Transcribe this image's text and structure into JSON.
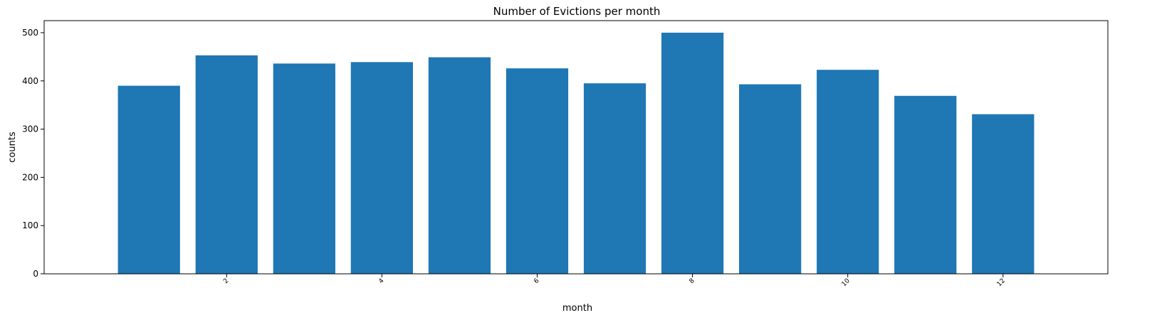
{
  "chart_data": {
    "type": "bar",
    "title": "Number of Evictions per month",
    "xlabel": "month",
    "ylabel": "counts",
    "x": [
      1,
      2,
      3,
      4,
      5,
      6,
      7,
      8,
      9,
      10,
      11,
      12
    ],
    "values": [
      390,
      453,
      436,
      439,
      449,
      426,
      395,
      500,
      393,
      423,
      369,
      331
    ],
    "xlim": [
      -0.35,
      13.35
    ],
    "ylim": [
      0,
      525
    ],
    "xticks": [
      2,
      4,
      6,
      8,
      10,
      12
    ],
    "xtick_labels": [
      "2",
      "4",
      "6",
      "8",
      "10",
      "12"
    ],
    "yticks": [
      0,
      100,
      200,
      300,
      400,
      500
    ],
    "ytick_labels": [
      "0",
      "100",
      "200",
      "300",
      "400",
      "500"
    ],
    "bar_color": "#1f77b4",
    "grid": false,
    "legend": "none"
  }
}
